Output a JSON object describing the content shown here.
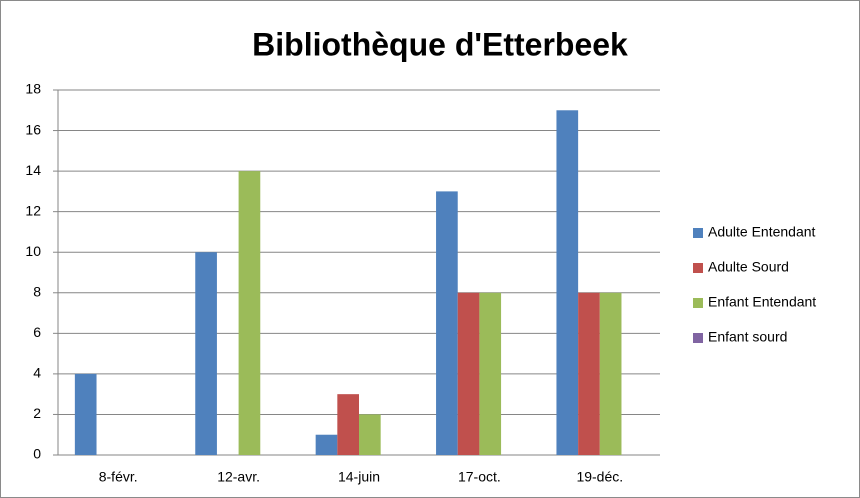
{
  "chart_data": {
    "type": "bar",
    "title": "Bibliothèque d'Etterbeek",
    "categories": [
      "8-févr.",
      "12-avr.",
      "14-juin",
      "17-oct.",
      "19-déc."
    ],
    "series": [
      {
        "name": "Adulte Entendant",
        "color": "#4f81bd",
        "values": [
          4,
          10,
          1,
          13,
          17
        ]
      },
      {
        "name": "Adulte Sourd",
        "color": "#c0504d",
        "values": [
          0,
          0,
          3,
          8,
          8
        ]
      },
      {
        "name": "Enfant Entendant",
        "color": "#9bbb59",
        "values": [
          0,
          14,
          2,
          8,
          8
        ]
      },
      {
        "name": "Enfant sourd",
        "color": "#8064a2",
        "values": [
          0,
          0,
          0,
          0,
          0
        ]
      }
    ],
    "ylim": [
      0,
      18
    ],
    "yticks": [
      0,
      2,
      4,
      6,
      8,
      10,
      12,
      14,
      16,
      18
    ],
    "grid": true,
    "legend": "right"
  }
}
